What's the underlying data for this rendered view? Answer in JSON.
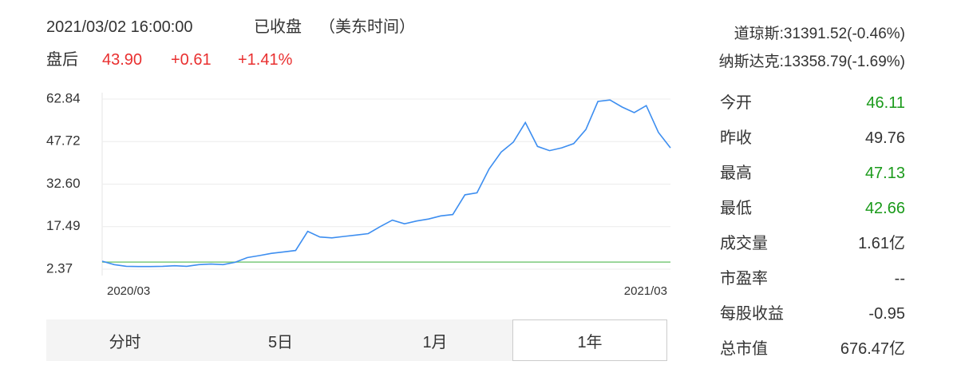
{
  "header": {
    "datetime": "2021/03/02 16:00:00",
    "status": "已收盘",
    "timezone": "（美东时间）",
    "after_hours_label": "盘后",
    "after_price": "43.90",
    "change": "+0.61",
    "change_pct": "+1.41%"
  },
  "indices": [
    "道琼斯:31391.52(-0.46%)",
    "纳斯达克:13358.79(-1.69%)"
  ],
  "chart_data": {
    "type": "line",
    "categories": [
      "2020/03",
      null,
      null,
      null,
      null,
      null,
      null,
      null,
      null,
      null,
      null,
      null,
      null,
      null,
      null,
      null,
      null,
      null,
      null,
      null,
      null,
      null,
      null,
      null,
      null,
      null,
      null,
      null,
      null,
      null,
      null,
      null,
      null,
      null,
      null,
      null,
      null,
      null,
      null,
      null,
      null,
      null,
      null,
      null,
      null,
      null,
      null,
      "2021/03"
    ],
    "values": [
      5.2,
      4.0,
      3.4,
      3.3,
      3.3,
      3.4,
      3.6,
      3.4,
      4.0,
      4.2,
      4.0,
      4.8,
      6.5,
      7.2,
      8.0,
      8.5,
      9.0,
      15.8,
      13.8,
      13.5,
      14.0,
      14.5,
      15.0,
      17.5,
      19.8,
      18.5,
      19.5,
      20.2,
      21.3,
      21.8,
      28.8,
      29.5,
      38.0,
      44.0,
      47.5,
      54.5,
      46.0,
      44.5,
      45.5,
      47.0,
      52.0,
      62.0,
      62.5,
      60.0,
      58.0,
      60.5,
      51.0,
      45.5
    ],
    "color": "#3d8ef0",
    "baseline": 4.9,
    "baseline_color": "#7cc97c",
    "ylim": [
      2.37,
      62.84
    ],
    "yticks": [
      2.37,
      17.49,
      {
        "value": 32.6,
        "label": "32.60"
      },
      47.72,
      62.84
    ],
    "grid": true
  },
  "tabs": [
    "分时",
    "5日",
    "1月",
    "1年"
  ],
  "selected_tab": 3,
  "stats": [
    {
      "label": "今开",
      "value": "46.11",
      "color": "#1a9a1a"
    },
    {
      "label": "昨收",
      "value": "49.76",
      "color": "#333333"
    },
    {
      "label": "最高",
      "value": "47.13",
      "color": "#1a9a1a"
    },
    {
      "label": "最低",
      "value": "42.66",
      "color": "#1a9a1a"
    },
    {
      "label": "成交量",
      "value": "1.61亿",
      "color": "#333333"
    },
    {
      "label": "市盈率",
      "value": "--",
      "color": "#333333"
    },
    {
      "label": "每股收益",
      "value": "-0.95",
      "color": "#333333"
    },
    {
      "label": "总市值",
      "value": "676.47亿",
      "color": "#333333"
    }
  ]
}
